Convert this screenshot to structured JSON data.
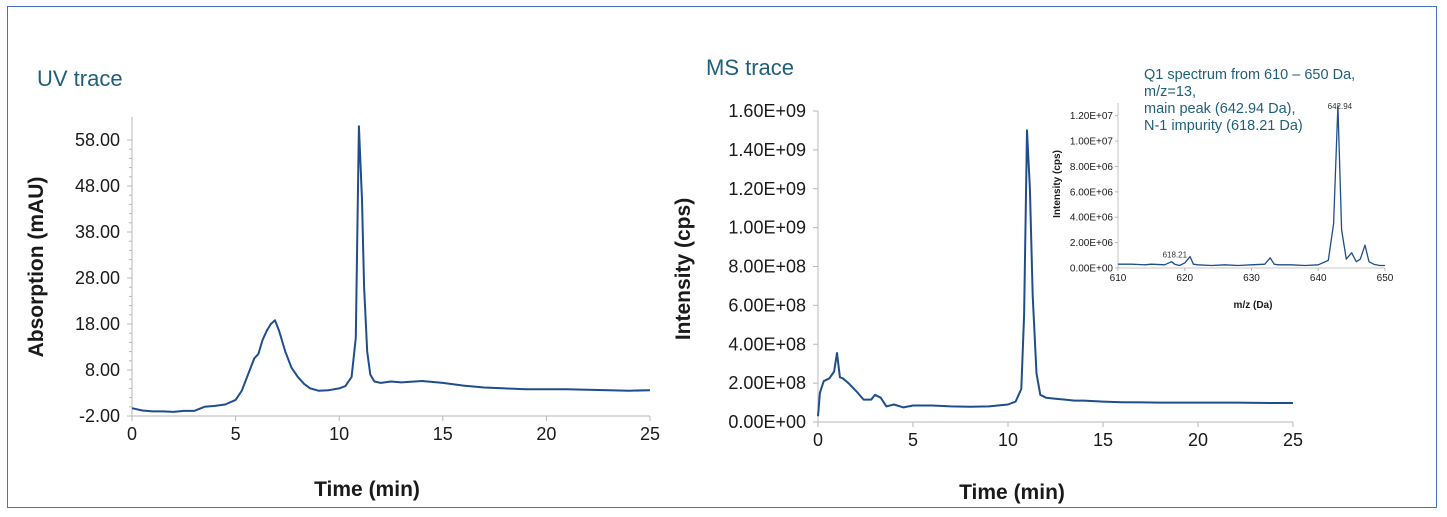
{
  "chart_data": [
    {
      "id": "uv",
      "type": "line",
      "title": "UV trace",
      "xlabel": "Time (min)",
      "ylabel": "Absorption (mAU)",
      "xlim": [
        0,
        25
      ],
      "ylim": [
        -2,
        63
      ],
      "xticks": [
        0,
        5,
        10,
        15,
        20,
        25
      ],
      "yticks": [
        -2,
        8,
        18,
        28,
        38,
        48,
        58
      ],
      "yticklabels": [
        "-2.00",
        "8.00",
        "18.00",
        "28.00",
        "38.00",
        "48.00",
        "58.00"
      ],
      "line_color": "#1f4e8c",
      "x": [
        0,
        0.5,
        1,
        1.5,
        2,
        2.5,
        3,
        3.5,
        4,
        4.5,
        5,
        5.3,
        5.6,
        5.9,
        6.1,
        6.3,
        6.5,
        6.7,
        6.9,
        7.1,
        7.4,
        7.7,
        8,
        8.3,
        8.6,
        9,
        9.5,
        10,
        10.3,
        10.6,
        10.8,
        10.95,
        11.1,
        11.2,
        11.35,
        11.5,
        11.7,
        12,
        12.5,
        13,
        14,
        15,
        16,
        17,
        18,
        19,
        20,
        21,
        22,
        23,
        24,
        25
      ],
      "y": [
        -0.3,
        -0.8,
        -1.0,
        -1.0,
        -1.1,
        -0.9,
        -0.9,
        0.0,
        0.2,
        0.5,
        1.5,
        3.5,
        7.0,
        10.5,
        11.5,
        14.5,
        16.5,
        18.0,
        18.8,
        16.5,
        12.0,
        8.5,
        6.5,
        5.0,
        4.0,
        3.5,
        3.6,
        4.0,
        4.5,
        6.5,
        15.0,
        61.0,
        45.0,
        26.0,
        12.0,
        7.0,
        5.5,
        5.2,
        5.5,
        5.3,
        5.6,
        5.2,
        4.6,
        4.2,
        4.0,
        3.8,
        3.8,
        3.8,
        3.7,
        3.6,
        3.5,
        3.6
      ]
    },
    {
      "id": "ms",
      "type": "line",
      "title": "MS trace",
      "xlabel": "Time (min)",
      "ylabel": "Intensity (cps)",
      "xlim": [
        0,
        25
      ],
      "ylim": [
        0,
        1600000000
      ],
      "xticks": [
        0,
        5,
        10,
        15,
        20,
        25
      ],
      "yticks": [
        0,
        200000000,
        400000000,
        600000000,
        800000000,
        1000000000,
        1200000000,
        1400000000,
        1600000000
      ],
      "yticklabels": [
        "0.00E+00",
        "2.00E+08",
        "4.00E+08",
        "6.00E+08",
        "8.00E+08",
        "1.00E+09",
        "1.20E+09",
        "1.40E+09",
        "1.60E+09"
      ],
      "line_color": "#1f4e8c",
      "x": [
        0,
        0.1,
        0.3,
        0.6,
        0.85,
        1.0,
        1.15,
        1.3,
        1.6,
        2.0,
        2.4,
        2.8,
        3.0,
        3.3,
        3.6,
        4.0,
        4.5,
        5.0,
        6,
        7,
        8,
        9,
        10,
        10.4,
        10.7,
        10.85,
        11.0,
        11.15,
        11.3,
        11.5,
        11.7,
        12,
        12.5,
        13,
        13.5,
        14,
        15,
        16,
        18,
        20,
        22,
        24,
        25
      ],
      "y": [
        30000000,
        150000000,
        210000000,
        225000000,
        260000000,
        355000000,
        230000000,
        225000000,
        200000000,
        160000000,
        115000000,
        115000000,
        140000000,
        125000000,
        80000000,
        90000000,
        75000000,
        85000000,
        85000000,
        80000000,
        78000000,
        80000000,
        90000000,
        105000000,
        170000000,
        550000000,
        1500000000,
        1200000000,
        650000000,
        250000000,
        140000000,
        125000000,
        120000000,
        115000000,
        110000000,
        110000000,
        105000000,
        102000000,
        100000000,
        100000000,
        100000000,
        98000000,
        98000000
      ]
    },
    {
      "id": "ms-inset",
      "type": "line",
      "title": "",
      "xlabel": "m/z (Da)",
      "ylabel": "Intensity (cps)",
      "xlim": [
        610,
        650
      ],
      "ylim": [
        0,
        13000000
      ],
      "xticks": [
        610,
        620,
        630,
        640,
        650
      ],
      "yticks": [
        0,
        2000000,
        4000000,
        6000000,
        8000000,
        10000000,
        12000000
      ],
      "yticklabels": [
        "0.00E+00",
        "2.00E+06",
        "4.00E+06",
        "6.00E+06",
        "8.00E+06",
        "1.00E+07",
        "1.20E+07"
      ],
      "line_color": "#1f4e8c",
      "annotation_lines": [
        "Q1 spectrum from 610 – 650 Da,",
        "m/z=13,",
        "main peak (642.94 Da),",
        "N-1 impurity (618.21 Da)"
      ],
      "peak_labels": [
        {
          "x": 618.21,
          "y": 600000,
          "text": "618.21"
        },
        {
          "x": 642.94,
          "y": 12300000,
          "text": "642.94"
        }
      ],
      "x": [
        610,
        612,
        614,
        615,
        617,
        618,
        618.5,
        619.2,
        620,
        620.8,
        621.3,
        622,
        624,
        626,
        628,
        630,
        632,
        632.8,
        633.4,
        634,
        636,
        638,
        640,
        641.5,
        642.3,
        642.94,
        643.5,
        644.2,
        645,
        645.7,
        646.3,
        647.0,
        647.6,
        648.3,
        649.2,
        650
      ],
      "y": [
        300000,
        300000,
        250000,
        300000,
        250000,
        500000,
        300000,
        200000,
        400000,
        900000,
        300000,
        250000,
        200000,
        250000,
        200000,
        250000,
        300000,
        800000,
        300000,
        250000,
        250000,
        200000,
        250000,
        600000,
        3500000,
        12800000,
        3000000,
        700000,
        1200000,
        500000,
        700000,
        1800000,
        500000,
        300000,
        200000,
        200000
      ]
    }
  ]
}
